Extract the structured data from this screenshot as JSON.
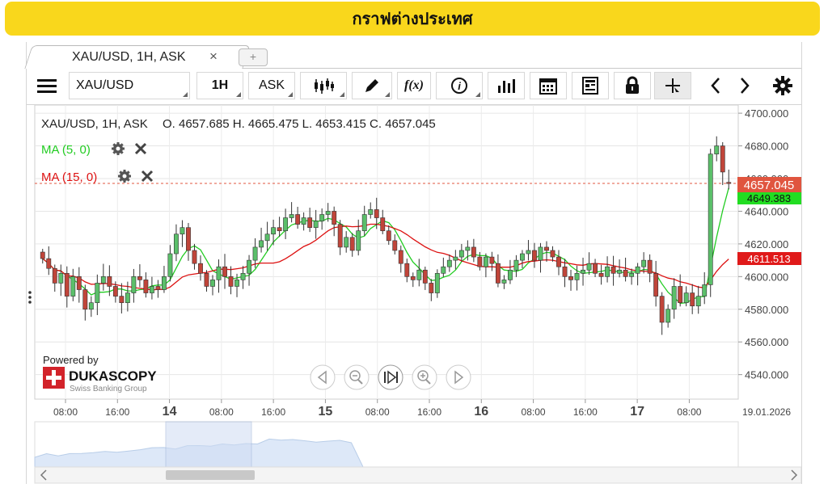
{
  "page_title": "กราฟต่างประเทศ",
  "tab": {
    "label": "XAU/USD, 1H, ASK",
    "close": "×",
    "add": "+"
  },
  "toolbar": {
    "instrument": "XAU/USD",
    "period": "1H",
    "side": "ASK",
    "fx_label": "f(x)",
    "info_label": "i"
  },
  "chart_data": {
    "type": "candlestick",
    "instrument": "XAU/USD",
    "period": "1H",
    "side": "ASK",
    "header": "XAU/USD, 1H, ASK",
    "ohlc_label": "O. 4657.685 H. 4665.475 L. 4653.415 C. 4657.045",
    "last_bar": {
      "open": 4657.685,
      "high": 4665.475,
      "low": 4653.415,
      "close": 4657.045
    },
    "indicators": [
      {
        "name": "MA (5, 0)",
        "color": "#22cc22",
        "value_label": "4649.383"
      },
      {
        "name": "MA (15, 0)",
        "color": "#dd1111",
        "value_label": "4611.513"
      }
    ],
    "current_price_label": "4657.045",
    "ylim": [
      4525,
      4705
    ],
    "y_ticks": [
      4700,
      4680,
      4660,
      4640,
      4620,
      4600,
      4580,
      4560,
      4540
    ],
    "y_tick_labels": [
      "4700.000",
      "4680.000",
      "4660.000",
      "4640.000",
      "4620.000",
      "4600.000",
      "4580.000",
      "4560.000",
      "4540.000"
    ],
    "x_tick_labels": [
      "08:00",
      "16:00",
      "14",
      "08:00",
      "16:00",
      "15",
      "08:00",
      "16:00",
      "16",
      "08:00",
      "16:00",
      "17",
      "08:00",
      "19.01.2026"
    ],
    "x_tick_bold": [
      false,
      false,
      true,
      false,
      false,
      true,
      false,
      false,
      true,
      false,
      false,
      true,
      false,
      false
    ],
    "closes": [
      4611,
      4605,
      4596,
      4602,
      4588,
      4600,
      4592,
      4580,
      4584,
      4596,
      4600,
      4594,
      4588,
      4584,
      4590,
      4600,
      4598,
      4590,
      4594,
      4592,
      4600,
      4614,
      4626,
      4630,
      4616,
      4608,
      4602,
      4594,
      4598,
      4606,
      4600,
      4594,
      4598,
      4602,
      4610,
      4618,
      4622,
      4626,
      4630,
      4628,
      4636,
      4638,
      4632,
      4636,
      4630,
      4634,
      4638,
      4640,
      4632,
      4618,
      4624,
      4616,
      4628,
      4638,
      4641,
      4636,
      4628,
      4622,
      4616,
      4608,
      4600,
      4598,
      4604,
      4596,
      4590,
      4602,
      4606,
      4610,
      4612,
      4616,
      4618,
      4612,
      4606,
      4612,
      4608,
      4596,
      4598,
      4604,
      4610,
      4614,
      4616,
      4610,
      4618,
      4616,
      4612,
      4606,
      4600,
      4598,
      4602,
      4604,
      4608,
      4602,
      4600,
      4606,
      4602,
      4604,
      4600,
      4602,
      4606,
      4610,
      4602,
      4588,
      4572,
      4580,
      4594,
      4584,
      4590,
      4582,
      4588,
      4595,
      4675,
      4680,
      4664,
      4657
    ]
  }
}
